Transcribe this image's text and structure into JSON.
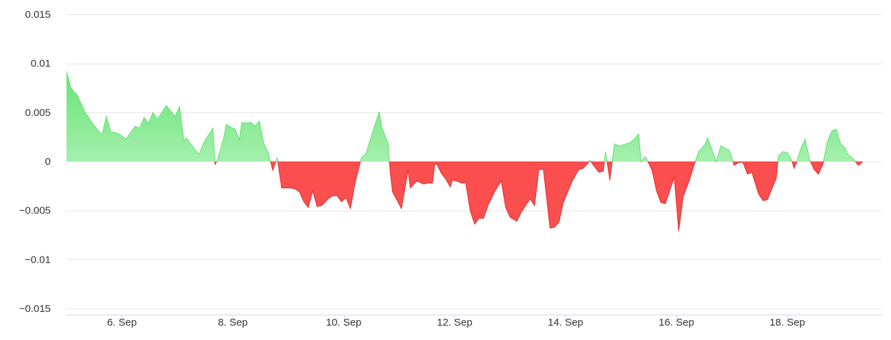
{
  "chart_data": {
    "type": "area",
    "title": "",
    "xlabel": "",
    "ylabel": "",
    "x_domain": [
      "2023-09-05",
      "2023-09-19T17:00"
    ],
    "ylim": [
      -0.015,
      0.015
    ],
    "grid": true,
    "legend": "none",
    "y_ticks": [
      0.015,
      0.01,
      0.005,
      0,
      -0.005,
      -0.01,
      -0.015
    ],
    "y_tick_labels": [
      "0.015",
      "0.01",
      "0.005",
      "0",
      "−0.005",
      "−0.01",
      "−0.015"
    ],
    "x_ticks": [
      {
        "date": "2023-09-06",
        "label": "6. Sep"
      },
      {
        "date": "2023-09-08",
        "label": "8. Sep"
      },
      {
        "date": "2023-09-10",
        "label": "10. Sep"
      },
      {
        "date": "2023-09-12",
        "label": "12. Sep"
      },
      {
        "date": "2023-09-14",
        "label": "14. Sep"
      },
      {
        "date": "2023-09-16",
        "label": "16. Sep"
      },
      {
        "date": "2023-09-18",
        "label": "18. Sep"
      }
    ],
    "colors": {
      "positive": "#5de36e",
      "positive_light": "#a6efae",
      "negative": "#fb4e4e",
      "negative_line": "#e52a2a",
      "grid": "#e6e6e6",
      "axis": "#ccd6eb"
    },
    "series": [
      {
        "values": [
          [
            "2023-09-05T00:00",
            0.0092
          ],
          [
            "2023-09-05T01:55",
            0.0075
          ],
          [
            "2023-09-05T04:48",
            0.0067
          ],
          [
            "2023-09-05T07:41",
            0.0052
          ],
          [
            "2023-09-05T11:31",
            0.0038
          ],
          [
            "2023-09-05T15:22",
            0.0027
          ],
          [
            "2023-09-05T17:17",
            0.0046
          ],
          [
            "2023-09-05T19:12",
            0.003
          ],
          [
            "2023-09-05T22:05",
            0.0029
          ],
          [
            "2023-09-06T01:55",
            0.0023
          ],
          [
            "2023-09-06T03:50",
            0.003
          ],
          [
            "2023-09-06T05:46",
            0.0036
          ],
          [
            "2023-09-06T07:41",
            0.0034
          ],
          [
            "2023-09-06T09:36",
            0.0045
          ],
          [
            "2023-09-06T11:31",
            0.0039
          ],
          [
            "2023-09-06T13:26",
            0.005
          ],
          [
            "2023-09-06T15:22",
            0.0043
          ],
          [
            "2023-09-06T19:12",
            0.0057
          ],
          [
            "2023-09-06T23:02",
            0.0046
          ],
          [
            "2023-09-07T00:58",
            0.0056
          ],
          [
            "2023-09-07T02:53",
            0.002
          ],
          [
            "2023-09-07T03:50",
            0.0024
          ],
          [
            "2023-09-07T05:46",
            0.0018
          ],
          [
            "2023-09-07T08:38",
            0.0009
          ],
          [
            "2023-09-07T09:36",
            0.0008
          ],
          [
            "2023-09-07T11:31",
            0.002
          ],
          [
            "2023-09-07T15:22",
            0.0034
          ],
          [
            "2023-09-07T16:19",
            -0.0003
          ],
          [
            "2023-09-07T17:17",
            0.0001
          ],
          [
            "2023-09-07T20:10",
            0.0025
          ],
          [
            "2023-09-07T21:07",
            0.0038
          ],
          [
            "2023-09-07T23:02",
            0.0035
          ],
          [
            "2023-09-08T00:58",
            0.0033
          ],
          [
            "2023-09-08T02:53",
            0.0022
          ],
          [
            "2023-09-08T03:50",
            0.004
          ],
          [
            "2023-09-08T05:46",
            0.0039
          ],
          [
            "2023-09-08T07:41",
            0.004
          ],
          [
            "2023-09-08T09:36",
            0.0036
          ],
          [
            "2023-09-08T11:31",
            0.0041
          ],
          [
            "2023-09-08T13:26",
            0.0018
          ],
          [
            "2023-09-08T15:22",
            0.0009
          ],
          [
            "2023-09-08T17:17",
            -0.0009
          ],
          [
            "2023-09-08T19:12",
            0.0004
          ],
          [
            "2023-09-08T21:07",
            -0.0027
          ],
          [
            "2023-09-09T00:58",
            -0.0027
          ],
          [
            "2023-09-09T02:53",
            -0.0028
          ],
          [
            "2023-09-09T04:48",
            -0.0031
          ],
          [
            "2023-09-09T06:43",
            -0.0041
          ],
          [
            "2023-09-09T08:38",
            -0.0047
          ],
          [
            "2023-09-09T10:34",
            -0.003
          ],
          [
            "2023-09-09T12:29",
            -0.0046
          ],
          [
            "2023-09-09T14:24",
            -0.0045
          ],
          [
            "2023-09-09T17:17",
            -0.0038
          ],
          [
            "2023-09-09T19:12",
            -0.0035
          ],
          [
            "2023-09-09T21:07",
            -0.0035
          ],
          [
            "2023-09-09T23:02",
            -0.0041
          ],
          [
            "2023-09-10T00:58",
            -0.0037
          ],
          [
            "2023-09-10T02:53",
            -0.0048
          ],
          [
            "2023-09-10T04:48",
            -0.0023
          ],
          [
            "2023-09-10T07:41",
            0.0004
          ],
          [
            "2023-09-10T09:36",
            0.0008
          ],
          [
            "2023-09-10T12:29",
            0.003
          ],
          [
            "2023-09-10T15:22",
            0.0051
          ],
          [
            "2023-09-10T16:19",
            0.0036
          ],
          [
            "2023-09-10T19:12",
            0.0018
          ],
          [
            "2023-09-10T20:10",
            -0.0012
          ],
          [
            "2023-09-10T21:07",
            -0.0031
          ],
          [
            "2023-09-11T00:58",
            -0.0048
          ],
          [
            "2023-09-11T03:50",
            -0.0009
          ],
          [
            "2023-09-11T04:48",
            -0.0027
          ],
          [
            "2023-09-11T07:41",
            -0.002
          ],
          [
            "2023-09-11T10:34",
            -0.0023
          ],
          [
            "2023-09-11T12:29",
            -0.0022
          ],
          [
            "2023-09-11T14:24",
            -0.0022
          ],
          [
            "2023-09-11T15:22",
            -0.0003
          ],
          [
            "2023-09-11T16:19",
            -0.0003
          ],
          [
            "2023-09-11T18:14",
            -0.0012
          ],
          [
            "2023-09-11T20:10",
            -0.0018
          ],
          [
            "2023-09-11T22:05",
            -0.0026
          ],
          [
            "2023-09-11T23:02",
            -0.0019
          ],
          [
            "2023-09-12T00:58",
            -0.002
          ],
          [
            "2023-09-12T02:53",
            -0.0022
          ],
          [
            "2023-09-12T04:48",
            -0.0022
          ],
          [
            "2023-09-12T06:43",
            -0.005
          ],
          [
            "2023-09-12T08:38",
            -0.0064
          ],
          [
            "2023-09-12T10:34",
            -0.0058
          ],
          [
            "2023-09-12T12:29",
            -0.0058
          ],
          [
            "2023-09-12T14:24",
            -0.0045
          ],
          [
            "2023-09-12T17:17",
            -0.0031
          ],
          [
            "2023-09-12T20:10",
            -0.002
          ],
          [
            "2023-09-12T22:05",
            -0.0047
          ],
          [
            "2023-09-13T00:00",
            -0.0057
          ],
          [
            "2023-09-13T02:53",
            -0.0061
          ],
          [
            "2023-09-13T04:48",
            -0.0052
          ],
          [
            "2023-09-13T08:38",
            -0.0038
          ],
          [
            "2023-09-13T10:34",
            -0.0045
          ],
          [
            "2023-09-13T12:29",
            -0.0008
          ],
          [
            "2023-09-13T14:24",
            -0.0008
          ],
          [
            "2023-09-13T17:17",
            -0.0068
          ],
          [
            "2023-09-13T19:12",
            -0.0067
          ],
          [
            "2023-09-13T21:07",
            -0.0062
          ],
          [
            "2023-09-13T23:02",
            -0.0042
          ],
          [
            "2023-09-14T02:53",
            -0.002
          ],
          [
            "2023-09-14T05:46",
            -0.0008
          ],
          [
            "2023-09-14T07:41",
            -0.0007
          ],
          [
            "2023-09-14T10:34",
            0.0001
          ],
          [
            "2023-09-14T14:24",
            -0.0011
          ],
          [
            "2023-09-14T16:19",
            -0.001
          ],
          [
            "2023-09-14T17:17",
            0.001
          ],
          [
            "2023-09-14T19:12",
            -0.0019
          ],
          [
            "2023-09-14T21:07",
            0.0018
          ],
          [
            "2023-09-14T23:02",
            0.0016
          ],
          [
            "2023-09-15T00:58",
            0.0017
          ],
          [
            "2023-09-15T03:50",
            0.0019
          ],
          [
            "2023-09-15T05:46",
            0.0023
          ],
          [
            "2023-09-15T07:41",
            0.0028
          ],
          [
            "2023-09-15T08:38",
            0.0
          ],
          [
            "2023-09-15T10:34",
            0.0005
          ],
          [
            "2023-09-15T13:26",
            -0.0009
          ],
          [
            "2023-09-15T15:22",
            -0.003
          ],
          [
            "2023-09-15T17:17",
            -0.0042
          ],
          [
            "2023-09-15T19:12",
            -0.0043
          ],
          [
            "2023-09-15T23:02",
            -0.0016
          ],
          [
            "2023-09-16T00:58",
            -0.0071
          ],
          [
            "2023-09-16T02:53",
            -0.0036
          ],
          [
            "2023-09-16T05:46",
            -0.0018
          ],
          [
            "2023-09-16T07:41",
            -0.0003
          ],
          [
            "2023-09-16T09:36",
            0.001
          ],
          [
            "2023-09-16T12:29",
            0.0018
          ],
          [
            "2023-09-16T13:26",
            0.0024
          ],
          [
            "2023-09-16T15:22",
            0.0012
          ],
          [
            "2023-09-16T17:17",
            0.0
          ],
          [
            "2023-09-16T19:12",
            0.0016
          ],
          [
            "2023-09-16T23:02",
            0.0011
          ],
          [
            "2023-09-17T00:58",
            -0.0004
          ],
          [
            "2023-09-17T02:53",
            -0.0001
          ],
          [
            "2023-09-17T04:48",
            -0.0001
          ],
          [
            "2023-09-17T06:43",
            -0.0013
          ],
          [
            "2023-09-17T08:38",
            -0.0011
          ],
          [
            "2023-09-17T11:31",
            -0.0033
          ],
          [
            "2023-09-17T13:26",
            -0.004
          ],
          [
            "2023-09-17T15:22",
            -0.0039
          ],
          [
            "2023-09-17T19:12",
            -0.0017
          ],
          [
            "2023-09-17T20:10",
            0.0006
          ],
          [
            "2023-09-17T22:05",
            0.001
          ],
          [
            "2023-09-18T00:00",
            0.0009
          ],
          [
            "2023-09-18T00:58",
            0.0005
          ],
          [
            "2023-09-18T01:55",
            0.0001
          ],
          [
            "2023-09-18T02:53",
            -0.0007
          ],
          [
            "2023-09-18T03:50",
            -0.0002
          ],
          [
            "2023-09-18T05:46",
            0.0013
          ],
          [
            "2023-09-18T07:41",
            0.0023
          ],
          [
            "2023-09-18T09:36",
            0.0002
          ],
          [
            "2023-09-18T11:31",
            -0.0008
          ],
          [
            "2023-09-18T13:26",
            -0.0013
          ],
          [
            "2023-09-18T15:22",
            -0.0003
          ],
          [
            "2023-09-18T17:17",
            0.002
          ],
          [
            "2023-09-18T19:12",
            0.0031
          ],
          [
            "2023-09-18T21:07",
            0.0033
          ],
          [
            "2023-09-18T23:02",
            0.0018
          ],
          [
            "2023-09-19T00:58",
            0.0014
          ],
          [
            "2023-09-19T01:55",
            0.0008
          ],
          [
            "2023-09-19T02:53",
            0.0006
          ],
          [
            "2023-09-19T04:48",
            0.0002
          ],
          [
            "2023-09-19T06:43",
            -0.0004
          ],
          [
            "2023-09-19T08:38",
            0.0
          ]
        ]
      }
    ]
  }
}
